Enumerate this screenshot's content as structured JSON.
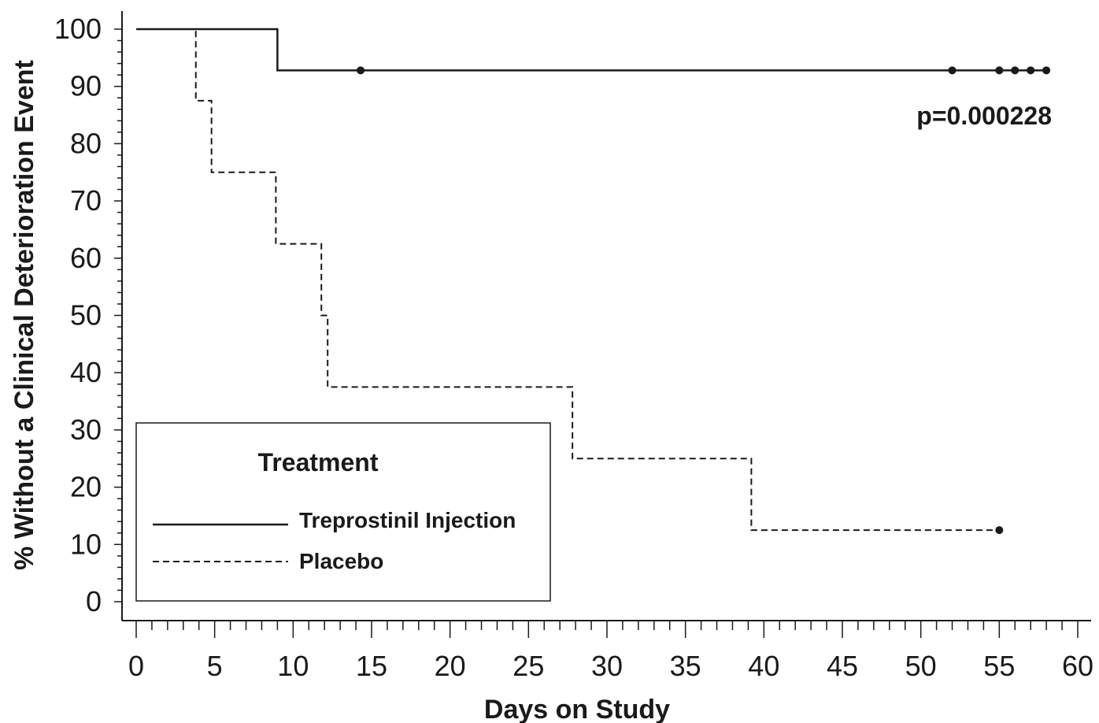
{
  "chart_data": {
    "type": "line",
    "subtype": "kaplan-meier step",
    "title": "",
    "xlabel": "Days on Study",
    "ylabel": "% Without a Clinical Deterioration Event",
    "xlim": [
      0,
      60
    ],
    "ylim": [
      0,
      100
    ],
    "x_ticks": [
      0,
      5,
      10,
      15,
      20,
      25,
      30,
      35,
      40,
      45,
      50,
      55,
      60
    ],
    "y_ticks": [
      0,
      10,
      20,
      30,
      40,
      50,
      60,
      70,
      80,
      90,
      100
    ],
    "grid": false,
    "legend": {
      "title": "Treatment",
      "position": "bottom-left"
    },
    "annotations": [
      {
        "text": "p=0.000228"
      }
    ],
    "series": [
      {
        "name": "Treprostinil Injection",
        "line_style": "solid",
        "x": [
          0,
          9,
          58
        ],
        "y": [
          100,
          92.8,
          92.8
        ],
        "censored": [
          {
            "x": 14.3,
            "y": 92.8
          },
          {
            "x": 52,
            "y": 92.8
          },
          {
            "x": 55,
            "y": 92.8
          },
          {
            "x": 56,
            "y": 92.8
          },
          {
            "x": 57,
            "y": 92.8
          },
          {
            "x": 58,
            "y": 92.8
          }
        ]
      },
      {
        "name": "Placebo",
        "line_style": "dashed",
        "x": [
          0,
          3.8,
          4.8,
          8.9,
          11.8,
          12.2,
          27.8,
          39.2,
          55
        ],
        "y": [
          100,
          87.5,
          75,
          62.5,
          50,
          37.5,
          25,
          12.5,
          12.5
        ],
        "censored": [
          {
            "x": 55,
            "y": 12.5
          }
        ]
      }
    ]
  },
  "colors": {
    "line": "#1a1a1a",
    "background": "#ffffff"
  }
}
